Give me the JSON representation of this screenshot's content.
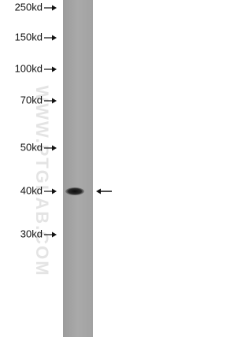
{
  "markers": [
    {
      "label": "250kd"
    },
    {
      "label": "150kd"
    },
    {
      "label": "100kd"
    },
    {
      "label": "70kd"
    },
    {
      "label": "50kd"
    },
    {
      "label": "40kd"
    },
    {
      "label": "30kd"
    }
  ],
  "watermark": "WWW.PTGLAB.COM"
}
